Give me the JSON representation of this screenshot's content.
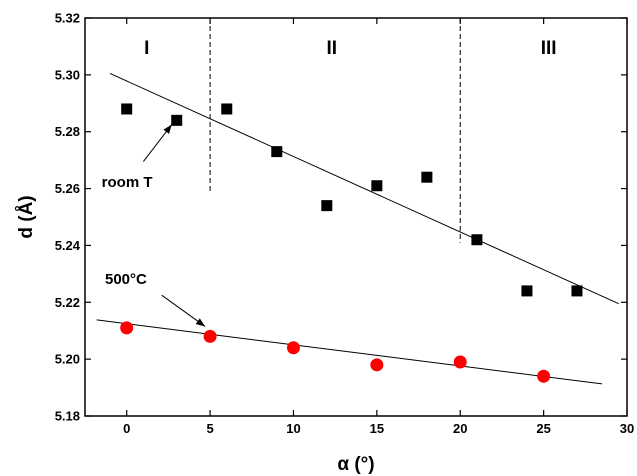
{
  "chart_data": {
    "type": "scatter",
    "xlabel": "α (°)",
    "ylabel": "d (Å)",
    "xlim": [
      -2.5,
      30
    ],
    "ylim": [
      5.18,
      5.32
    ],
    "xticks": [
      "0",
      "5",
      "10",
      "15",
      "20",
      "25",
      "30"
    ],
    "yticks": [
      "5.18",
      "5.20",
      "5.22",
      "5.24",
      "5.26",
      "5.28",
      "5.30",
      "5.32"
    ],
    "grid": false,
    "regions": [
      {
        "label": "I",
        "x": 1.2
      },
      {
        "label": "II",
        "x": 12.3
      },
      {
        "label": "III",
        "x": 25.3
      }
    ],
    "region_dividers": [
      {
        "x": 5,
        "y_from": 5.259,
        "y_to": 5.32
      },
      {
        "x": 20,
        "y_from": 5.241,
        "y_to": 5.32
      }
    ],
    "series": [
      {
        "name": "room T",
        "marker": "square",
        "color": "#000000",
        "x": [
          0,
          3,
          6,
          9,
          12,
          15,
          18,
          21,
          24,
          27
        ],
        "y": [
          5.288,
          5.284,
          5.288,
          5.273,
          5.254,
          5.261,
          5.264,
          5.242,
          5.224,
          5.224
        ],
        "fit": {
          "x": [
            -1,
            29.5
          ],
          "y": [
            5.3005,
            5.2195
          ]
        }
      },
      {
        "name": "500°C",
        "marker": "circle",
        "color": "#ff0000",
        "x": [
          0,
          5,
          10,
          15,
          20,
          25
        ],
        "y": [
          5.211,
          5.208,
          5.204,
          5.198,
          5.199,
          5.194
        ],
        "fit": {
          "x": [
            -1.8,
            28.5
          ],
          "y": [
            5.2138,
            5.1913
          ]
        }
      }
    ],
    "annotations": [
      {
        "text": "room T",
        "text_x": -1.5,
        "text_y": 5.2605,
        "arrow_from": [
          1.0,
          5.2695
        ],
        "arrow_to": [
          2.7,
          5.2825
        ]
      },
      {
        "text": "500°C",
        "text_x": -1.3,
        "text_y": 5.2265,
        "arrow_from": [
          2.1,
          5.2225
        ],
        "arrow_to": [
          4.7,
          5.2115
        ]
      }
    ]
  }
}
